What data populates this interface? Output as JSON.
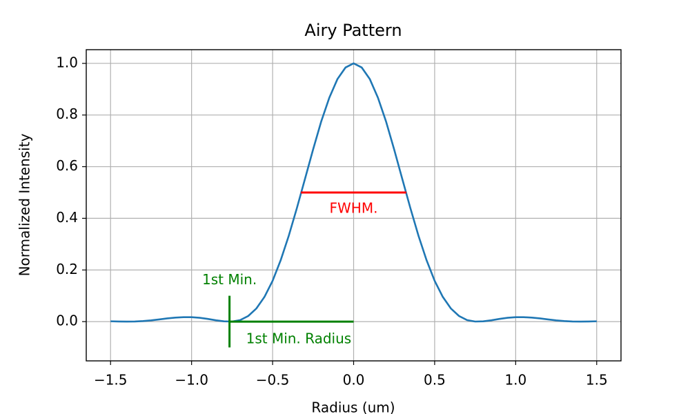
{
  "chart_data": {
    "type": "line",
    "title": "Airy Pattern",
    "x_label": "Radius (um)",
    "y_label": "Normalized Intensity",
    "color": "#1f77b4",
    "grid": true,
    "x": [
      -1.5,
      -1.45,
      -1.4,
      -1.35,
      -1.3,
      -1.25,
      -1.2,
      -1.15,
      -1.1,
      -1.05,
      -1.0,
      -0.95,
      -0.9,
      -0.85,
      -0.8,
      -0.75,
      -0.7,
      -0.65,
      -0.6,
      -0.55,
      -0.5,
      -0.45,
      -0.4,
      -0.35,
      -0.3,
      -0.25,
      -0.2,
      -0.15,
      -0.1,
      -0.05,
      0,
      0.05,
      0.1,
      0.15,
      0.2,
      0.25,
      0.3,
      0.35,
      0.4,
      0.45,
      0.5,
      0.55,
      0.6,
      0.65,
      0.7,
      0.75,
      0.8,
      0.85,
      0.9,
      0.95,
      1.0,
      1.05,
      1.1,
      1.15,
      1.2,
      1.25,
      1.3,
      1.35,
      1.4,
      1.45,
      1.5
    ],
    "values": [
      0.0013,
      0.0004,
      0.0,
      0.0006,
      0.0022,
      0.0049,
      0.0085,
      0.0124,
      0.0154,
      0.0172,
      0.0172,
      0.0148,
      0.0105,
      0.0052,
      0.0011,
      0.0003,
      0.006,
      0.022,
      0.051,
      0.096,
      0.158,
      0.238,
      0.333,
      0.44,
      0.553,
      0.667,
      0.775,
      0.867,
      0.939,
      0.984,
      1.0,
      0.984,
      0.939,
      0.867,
      0.775,
      0.667,
      0.553,
      0.44,
      0.333,
      0.238,
      0.158,
      0.096,
      0.051,
      0.022,
      0.006,
      0.0003,
      0.0011,
      0.0052,
      0.0105,
      0.0148,
      0.0172,
      0.0172,
      0.0154,
      0.0124,
      0.0085,
      0.0049,
      0.0022,
      0.0006,
      0.0,
      0.0004,
      0.0013
    ],
    "xlim": [
      -1.65,
      1.65
    ],
    "ylim": [
      -0.152,
      1.053
    ],
    "xticks": [
      {
        "value": -1.5,
        "label": "−1.5"
      },
      {
        "value": -1.0,
        "label": "−1.0"
      },
      {
        "value": -0.5,
        "label": "−0.5"
      },
      {
        "value": 0,
        "label": "0.0"
      },
      {
        "value": 0.5,
        "label": "0.5"
      },
      {
        "value": 1.0,
        "label": "1.0"
      },
      {
        "value": 1.5,
        "label": "1.5"
      }
    ],
    "yticks": [
      {
        "value": 0,
        "label": "0.0"
      },
      0.2,
      0.4,
      0.6,
      0.8,
      {
        "value": 1.0,
        "label": "1.0"
      }
    ],
    "annotations": [
      {
        "label": "FWHM.",
        "color": "#ff0000",
        "x": [
          -0.325,
          0.325
        ],
        "y": [
          0.5,
          0.5
        ]
      },
      {
        "label": "1st Min.",
        "color": "#008000",
        "x": [
          -0.766,
          -0.766
        ],
        "y": [
          -0.1,
          0.1
        ]
      },
      {
        "label": "1st Min. Radius",
        "color": "#008000",
        "x": [
          -0.766,
          0
        ],
        "y": [
          0,
          0
        ]
      }
    ]
  }
}
